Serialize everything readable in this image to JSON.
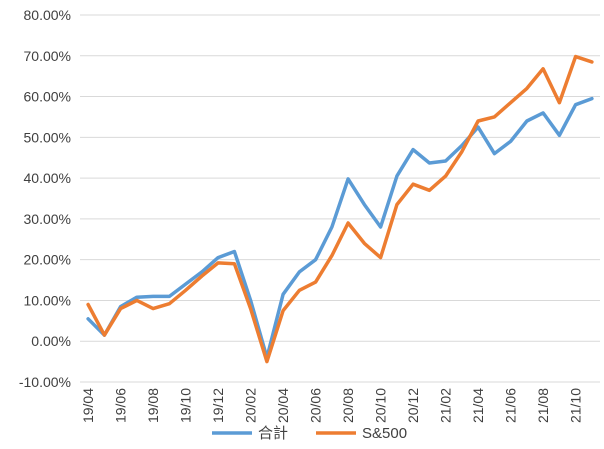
{
  "chart_data": {
    "type": "line",
    "x": [
      "19/04",
      "19/05",
      "19/06",
      "19/07",
      "19/08",
      "19/09",
      "19/10",
      "19/11",
      "19/12",
      "20/01",
      "20/02",
      "20/03",
      "20/04",
      "20/05",
      "20/06",
      "20/07",
      "20/08",
      "20/09",
      "20/10",
      "20/11",
      "20/12",
      "21/01",
      "21/02",
      "21/03",
      "21/04",
      "21/05",
      "21/06",
      "21/07",
      "21/08",
      "21/09",
      "21/10",
      "21/11"
    ],
    "x_tick_labels": [
      "19/04",
      "19/06",
      "19/08",
      "19/10",
      "19/12",
      "20/02",
      "20/04",
      "20/06",
      "20/08",
      "20/10",
      "20/12",
      "21/02",
      "21/04",
      "21/06",
      "21/08",
      "21/10"
    ],
    "y_tick_labels": [
      "80.00%",
      "70.00%",
      "60.00%",
      "50.00%",
      "40.00%",
      "30.00%",
      "20.00%",
      "10.00%",
      "0.00%",
      "-10.00%"
    ],
    "ylim": [
      -10,
      80
    ],
    "y_unit": "%",
    "grid": true,
    "legend_position": "bottom",
    "series": [
      {
        "name": "合計",
        "color": "#5B9BD5",
        "values": [
          5.5,
          1.5,
          8.5,
          10.8,
          11.0,
          11.0,
          14.0,
          17.0,
          20.5,
          22.0,
          10.0,
          -4.0,
          11.5,
          17.0,
          20.0,
          28.0,
          39.8,
          33.5,
          28.0,
          40.5,
          47.0,
          43.7,
          44.2,
          48.0,
          52.5,
          46.0,
          49.0,
          54.0,
          56.0,
          50.5,
          58.0,
          59.5
        ]
      },
      {
        "name": "S&500",
        "color": "#ED7D31",
        "values": [
          9.0,
          1.5,
          8.0,
          10.0,
          8.0,
          9.2,
          12.5,
          16.0,
          19.2,
          19.0,
          8.0,
          -5.0,
          7.5,
          12.5,
          14.5,
          21.0,
          29.0,
          24.0,
          20.5,
          33.5,
          38.5,
          37.0,
          40.5,
          46.5,
          54.0,
          55.0,
          58.5,
          62.0,
          66.8,
          58.5,
          69.8,
          68.5
        ]
      }
    ]
  }
}
